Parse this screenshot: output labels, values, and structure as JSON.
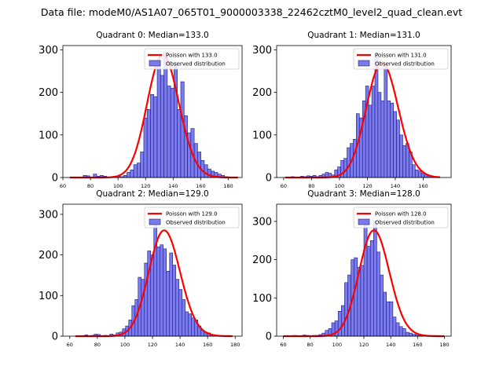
{
  "figure_title": "Data file: modeM0/AS1A07_065T01_9000003338_22462cztM0_level2_quad_clean.evt",
  "colors": {
    "bar_fill": "#7b7bf0",
    "bar_edge": "#1a1a7a",
    "poisson_line": "#ff0000",
    "axes": "#000000"
  },
  "chart_data": [
    {
      "type": "bar",
      "title": "Quadrant 0: Median=133.0",
      "legend": [
        "Poisson with 133.0",
        "Observed distribution"
      ],
      "legend_position": "top-right",
      "xlim": [
        60,
        190
      ],
      "ylim": [
        0,
        310
      ],
      "xticks": [
        60,
        80,
        100,
        120,
        140,
        160,
        180
      ],
      "yticks": [
        0,
        100,
        200,
        300
      ],
      "median": 133.0,
      "bin_start": 65,
      "bin_width": 2.44,
      "values": [
        0,
        0,
        0,
        0,
        5,
        4,
        1,
        8,
        3,
        5,
        3,
        0,
        1,
        3,
        3,
        2,
        5,
        12,
        18,
        30,
        34,
        60,
        140,
        160,
        195,
        190,
        275,
        240,
        295,
        215,
        210,
        270,
        160,
        225,
        145,
        105,
        115,
        80,
        60,
        40,
        30,
        20,
        15,
        12,
        8,
        5,
        2,
        1,
        1,
        0
      ]
    },
    {
      "type": "bar",
      "title": "Quadrant 1: Median=131.0",
      "legend": [
        "Poisson with 131.0",
        "Observed distribution"
      ],
      "legend_position": "top-right",
      "xlim": [
        55,
        180
      ],
      "ylim": [
        0,
        310
      ],
      "xticks": [
        60,
        80,
        100,
        120,
        140,
        160
      ],
      "yticks": [
        0,
        100,
        200,
        300
      ],
      "median": 131.0,
      "bin_start": 61,
      "bin_width": 2.22,
      "values": [
        0,
        1,
        2,
        1,
        1,
        3,
        2,
        4,
        3,
        5,
        2,
        5,
        8,
        12,
        10,
        6,
        18,
        25,
        40,
        45,
        70,
        80,
        90,
        150,
        140,
        180,
        215,
        170,
        215,
        290,
        200,
        180,
        265,
        180,
        175,
        155,
        135,
        100,
        75,
        80,
        60,
        30,
        18,
        15,
        10,
        8,
        5,
        3,
        2,
        1
      ]
    },
    {
      "type": "bar",
      "title": "Quadrant 2: Median=129.0",
      "legend": [
        "Poisson with 129.0",
        "Observed distribution"
      ],
      "legend_position": "top-right",
      "xlim": [
        55,
        185
      ],
      "ylim": [
        0,
        325
      ],
      "xticks": [
        60,
        80,
        100,
        120,
        140,
        160,
        180
      ],
      "yticks": [
        0,
        100,
        200,
        300
      ],
      "median": 129.0,
      "bin_start": 64,
      "bin_width": 2.28,
      "values": [
        0,
        0,
        1,
        3,
        0,
        2,
        5,
        4,
        0,
        2,
        1,
        5,
        3,
        8,
        10,
        18,
        25,
        40,
        75,
        90,
        145,
        140,
        180,
        210,
        200,
        280,
        220,
        225,
        215,
        160,
        205,
        175,
        140,
        115,
        90,
        60,
        55,
        45,
        40,
        25,
        15,
        10,
        8,
        3,
        2,
        1,
        0,
        0,
        0,
        1
      ]
    },
    {
      "type": "bar",
      "title": "Quadrant 3: Median=128.0",
      "legend": [
        "Poisson with 128.0",
        "Observed distribution"
      ],
      "legend_position": "top-right",
      "xlim": [
        55,
        185
      ],
      "ylim": [
        0,
        345
      ],
      "xticks": [
        60,
        80,
        100,
        120,
        140,
        160,
        180
      ],
      "yticks": [
        0,
        100,
        200,
        300
      ],
      "median": 128.0,
      "bin_start": 60,
      "bin_width": 2.4,
      "values": [
        0,
        1,
        0,
        2,
        1,
        0,
        3,
        2,
        1,
        2,
        2,
        4,
        8,
        15,
        20,
        35,
        40,
        65,
        80,
        140,
        160,
        200,
        205,
        180,
        185,
        300,
        235,
        250,
        300,
        220,
        160,
        115,
        90,
        90,
        50,
        35,
        25,
        20,
        10,
        8,
        5,
        4,
        2,
        1,
        1,
        0,
        0,
        0,
        1,
        0
      ]
    }
  ]
}
